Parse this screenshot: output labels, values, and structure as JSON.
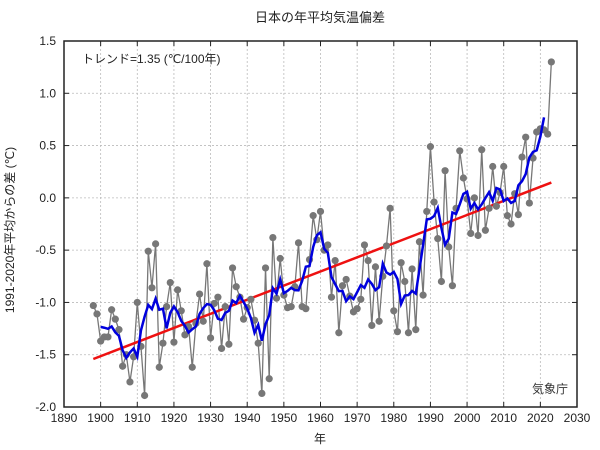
{
  "chart_data": {
    "type": "line",
    "title": "日本の年平均気温偏差",
    "xlabel": "年",
    "ylabel": "1991-2020年平均からの差 (℃)",
    "trend_label": "トレンド=1.35 (℃/100年)",
    "source_label": "気象庁",
    "xlim": [
      1890,
      2030
    ],
    "ylim": [
      -2.0,
      1.5
    ],
    "x_ticks": [
      1890,
      1900,
      1910,
      1920,
      1930,
      1940,
      1950,
      1960,
      1970,
      1980,
      1990,
      2000,
      2010,
      2020,
      2030
    ],
    "y_ticks": [
      -2.0,
      -1.5,
      -1.0,
      -0.5,
      0.0,
      0.5,
      1.0,
      1.5
    ],
    "x_tick_labels": [
      "1890",
      "1900",
      "1910",
      "1920",
      "1930",
      "1940",
      "1950",
      "1960",
      "1970",
      "1980",
      "1990",
      "2000",
      "2010",
      "2020",
      "2030"
    ],
    "y_tick_labels": [
      "-2.0",
      "-1.5",
      "-1.0",
      "-0.5",
      "0.0",
      "0.5",
      "1.0",
      "1.5"
    ],
    "grid": true,
    "start_year": 1898,
    "series": [
      {
        "kind": "annual anomaly",
        "color": "#777777",
        "values": [
          -1.03,
          -1.11,
          -1.37,
          -1.33,
          -1.33,
          -1.07,
          -1.16,
          -1.26,
          -1.61,
          -1.5,
          -1.76,
          -1.52,
          -1.0,
          -1.42,
          -1.89,
          -0.51,
          -0.86,
          -0.44,
          -1.62,
          -1.39,
          -1.04,
          -0.81,
          -1.38,
          -0.88,
          -1.08,
          -1.31,
          -1.23,
          -1.62,
          -1.2,
          -0.92,
          -1.18,
          -0.63,
          -1.34,
          -1.01,
          -0.95,
          -1.44,
          -1.04,
          -1.4,
          -0.67,
          -0.85,
          -0.95,
          -1.16,
          -1.05,
          -0.97,
          -1.17,
          -1.39,
          -1.87,
          -0.67,
          -1.73,
          -0.38,
          -0.96,
          -0.58,
          -0.93,
          -1.05,
          -1.04,
          -0.85,
          -0.43,
          -1.04,
          -1.06,
          -0.59,
          -0.17,
          -0.4,
          -0.13,
          -0.5,
          -0.45,
          -0.95,
          -0.6,
          -1.29,
          -0.84,
          -0.78,
          -0.94,
          -1.09,
          -1.06,
          -0.97,
          -0.45,
          -0.6,
          -1.22,
          -0.66,
          -1.18,
          -0.75,
          -0.46,
          -0.1,
          -1.08,
          -1.28,
          -0.62,
          -0.8,
          -1.29,
          -0.68,
          -1.26,
          -0.42,
          -0.93,
          -0.13,
          0.49,
          -0.04,
          -0.39,
          -0.8,
          0.26,
          -0.47,
          -0.84,
          -0.1,
          0.45,
          0.19,
          -0.01,
          -0.34,
          0.0,
          -0.36,
          0.46,
          -0.31,
          -0.1,
          0.3,
          -0.08,
          0.05,
          0.3,
          -0.17,
          -0.25,
          0.04,
          -0.16,
          0.39,
          0.58,
          -0.05,
          0.38,
          0.63,
          0.66,
          0.65,
          0.61,
          1.3
        ]
      },
      {
        "kind": "5-year running mean",
        "color": "#0000dd"
      },
      {
        "kind": "linear trend",
        "color": "#ee1111",
        "slope_per_100yr": 1.35
      }
    ]
  }
}
